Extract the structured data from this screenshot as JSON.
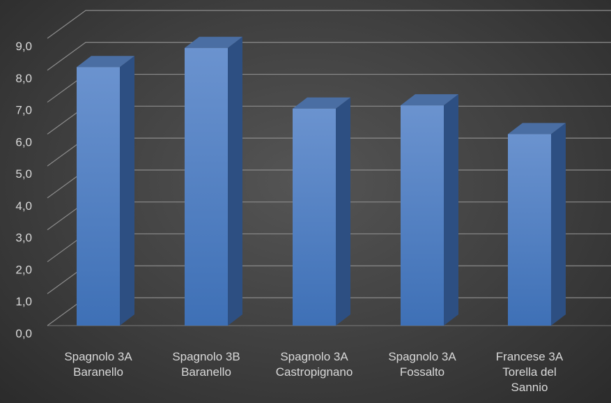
{
  "chart_data": {
    "type": "bar",
    "style": "3d-column",
    "categories": [
      [
        "Spagnolo 3A",
        "Baranello"
      ],
      [
        "Spagnolo 3B",
        "Baranello"
      ],
      [
        "Spagnolo 3A",
        "Castropignano"
      ],
      [
        "Spagnolo 3A",
        "Fossalto"
      ],
      [
        "Francese 3A",
        "Torella del",
        "Sannio"
      ]
    ],
    "values": [
      8.1,
      8.7,
      6.8,
      6.9,
      6.0
    ],
    "y_ticks": [
      "0,0",
      "1,0",
      "2,0",
      "3,0",
      "4,0",
      "5,0",
      "6,0",
      "7,0",
      "8,0",
      "9,0"
    ],
    "ylim": [
      0,
      9
    ],
    "title": "",
    "xlabel": "",
    "ylabel": "",
    "grid": true,
    "legend": "none",
    "colors": {
      "bar_front_light": "#6b93cf",
      "bar_front_dark": "#3e70b6",
      "bar_side": "#2d4f82",
      "bar_top": "#4a6ea3",
      "grid": "#8c8c8c",
      "text": "#d9d9d9"
    }
  }
}
